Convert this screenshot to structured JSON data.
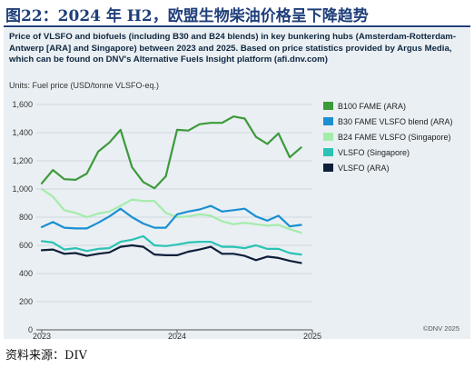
{
  "figure": {
    "title": "图22：2024 年 H2，欧盟生物柴油价格呈下降趋势",
    "source": "资料来源：DIV"
  },
  "panel": {
    "subtitle": "Price of VLSFO and biofuels (including B30 and B24 blends) in key bunkering hubs (Amsterdam-Rotterdam-Antwerp [ARA] and Singapore) between 2023 and 2025. Based on price statistics provided by Argus Media, which can be found on DNV's Alternative Fuels Insight platform (afi.dnv.com)",
    "units": "Units: Fuel price (USD/tonne VLSFO-eq.)",
    "copyright": "©DNV 2025"
  },
  "chart_data": {
    "type": "line",
    "title": "",
    "xlabel": "",
    "ylabel": "Fuel price (USD/tonne VLSFO-eq.)",
    "x": [
      2023.0,
      2023.083,
      2023.167,
      2023.25,
      2023.333,
      2023.417,
      2023.5,
      2023.583,
      2023.667,
      2023.75,
      2023.833,
      2023.917,
      2024.0,
      2024.083,
      2024.167,
      2024.25,
      2024.333,
      2024.417,
      2024.5,
      2024.583,
      2024.667,
      2024.75,
      2024.833,
      2024.917
    ],
    "xlim": [
      2022.96,
      2025.0
    ],
    "x_ticks": [
      2023,
      2024,
      2025
    ],
    "x_tick_labels": [
      "2023",
      "2024",
      "2025"
    ],
    "ylim": [
      0,
      1600
    ],
    "y_ticks": [
      0,
      200,
      400,
      600,
      800,
      1000,
      1200,
      1400,
      1600
    ],
    "y_tick_labels": [
      "0",
      "200",
      "400",
      "600",
      "800",
      "1,000",
      "1,200",
      "1,400",
      "1,600"
    ],
    "grid": "horizontal",
    "legend": "right",
    "series": [
      {
        "name": "B100 FAME (ARA)",
        "color": "#3d9a3a",
        "values": [
          1040,
          1135,
          1070,
          1065,
          1110,
          1265,
          1330,
          1420,
          1155,
          1050,
          1005,
          1090,
          1420,
          1415,
          1460,
          1470,
          1470,
          1515,
          1500,
          1370,
          1320,
          1395,
          1225,
          1295
        ]
      },
      {
        "name": "B30 FAME VLSFO blend (ARA)",
        "color": "#1b8fd2",
        "values": [
          730,
          765,
          725,
          720,
          720,
          760,
          805,
          860,
          800,
          755,
          725,
          725,
          820,
          840,
          855,
          880,
          840,
          850,
          860,
          805,
          775,
          810,
          735,
          745
        ]
      },
      {
        "name": "B24 FAME VLSFO (Singapore)",
        "color": "#a4ecaa",
        "values": [
          1000,
          945,
          850,
          830,
          800,
          825,
          840,
          880,
          925,
          915,
          915,
          830,
          800,
          805,
          820,
          810,
          770,
          750,
          760,
          750,
          740,
          745,
          715,
          690
        ]
      },
      {
        "name": "VLSFO (Singapore)",
        "color": "#2bc3b5",
        "values": [
          630,
          620,
          570,
          580,
          560,
          575,
          580,
          625,
          640,
          665,
          600,
          595,
          605,
          620,
          625,
          625,
          590,
          590,
          580,
          600,
          575,
          575,
          545,
          535
        ]
      },
      {
        "name": "VLSFO (ARA)",
        "color": "#0f1f3a",
        "values": [
          565,
          570,
          540,
          545,
          525,
          540,
          550,
          590,
          600,
          590,
          535,
          530,
          530,
          555,
          570,
          590,
          540,
          540,
          525,
          495,
          520,
          510,
          490,
          475
        ]
      }
    ]
  }
}
